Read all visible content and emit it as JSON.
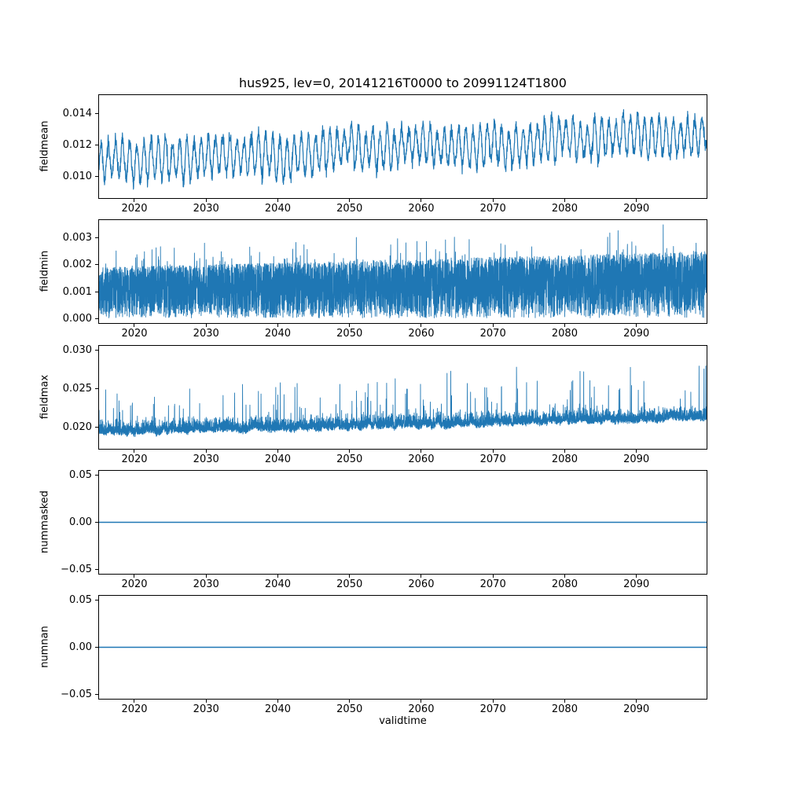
{
  "figure": {
    "title": "hus925, lev=0, 20141216T0000 to 20991124T1800",
    "xlabel": "validtime",
    "line_color": "#1f77b4",
    "background_color": "#ffffff",
    "axis_color": "#000000"
  },
  "x_axis": {
    "label": "validtime",
    "min": 2014.96,
    "max": 2099.9,
    "ticks": [
      2020,
      2030,
      2040,
      2050,
      2060,
      2070,
      2080,
      2090
    ],
    "tick_labels": [
      "2020",
      "2030",
      "2040",
      "2050",
      "2060",
      "2070",
      "2080",
      "2090"
    ]
  },
  "chart_data": [
    {
      "type": "line",
      "ylabel": "fieldmean",
      "ylim": [
        0.0086,
        0.0152
      ],
      "yticks": [
        0.01,
        0.012,
        0.014
      ],
      "ytick_labels": [
        "0.010",
        "0.012",
        "0.014"
      ],
      "summary": "Annual oscillation between ~0.0095 and ~0.0125 in 2015 rising steadily to between ~0.0110 and ~0.0148 by 2099",
      "series": {
        "name": "fieldmean",
        "kind": "seasonal",
        "points": 3200,
        "seed": 11,
        "base_start": 0.0109,
        "base_end": 0.0128,
        "amplitude": 0.00115,
        "noise": 0.00022,
        "line_width": 1.2
      }
    },
    {
      "type": "line",
      "ylabel": "fieldmin",
      "ylim": [
        -0.000175,
        0.003675
      ],
      "yticks": [
        0.0,
        0.001,
        0.002,
        0.003
      ],
      "ytick_labels": [
        "0.000",
        "0.001",
        "0.002",
        "0.003"
      ],
      "summary": "Dense noise band from 0.0000 up to ~0.0025 with frequent spikes reaching ~0.0030-0.0035, slightly growing over time",
      "series": {
        "name": "fieldmin",
        "kind": "noiseband",
        "points": 7000,
        "seed": 22,
        "band_start": 0.0019,
        "band_end": 0.0025,
        "spike_chance": 0.05,
        "spike_start": 0.0009,
        "spike_end": 0.0013,
        "line_width": 0.9
      }
    },
    {
      "type": "line",
      "ylabel": "fieldmax",
      "ylim": [
        0.0171,
        0.0307
      ],
      "yticks": [
        0.02,
        0.025,
        0.03
      ],
      "ytick_labels": [
        "0.020",
        "0.025",
        "0.030"
      ],
      "summary": "Noisy series around 0.019-0.022 trending slightly upward with upward spikes reaching 0.025-0.030",
      "series": {
        "name": "fieldmax",
        "kind": "spiky",
        "points": 7000,
        "seed": 33,
        "base_start": 0.0193,
        "base_end": 0.0213,
        "noise": 0.00075,
        "spike_chance": 0.018,
        "spike_min": 0.0012,
        "spike_extra_start": 0.0038,
        "spike_extra_end": 0.0062,
        "max_clip": 0.0301,
        "min_clip": 0.0177,
        "line_width": 0.9
      }
    },
    {
      "type": "line",
      "ylabel": "nummasked",
      "ylim": [
        -0.055,
        0.055
      ],
      "yticks": [
        -0.05,
        0.0,
        0.05
      ],
      "ytick_labels": [
        "−0.05",
        "0.00",
        "0.05"
      ],
      "summary": "Constant zero line over the full time range",
      "series": {
        "name": "nummasked",
        "kind": "constant",
        "value": 0.0,
        "points": 2,
        "seed": 44,
        "line_width": 1.6
      }
    },
    {
      "type": "line",
      "ylabel": "numnan",
      "ylim": [
        -0.055,
        0.055
      ],
      "yticks": [
        -0.05,
        0.0,
        0.05
      ],
      "ytick_labels": [
        "−0.05",
        "0.00",
        "0.05"
      ],
      "summary": "Constant zero line over the full time range",
      "series": {
        "name": "numnan",
        "kind": "constant",
        "value": 0.0,
        "points": 2,
        "seed": 55,
        "line_width": 1.6
      }
    }
  ]
}
